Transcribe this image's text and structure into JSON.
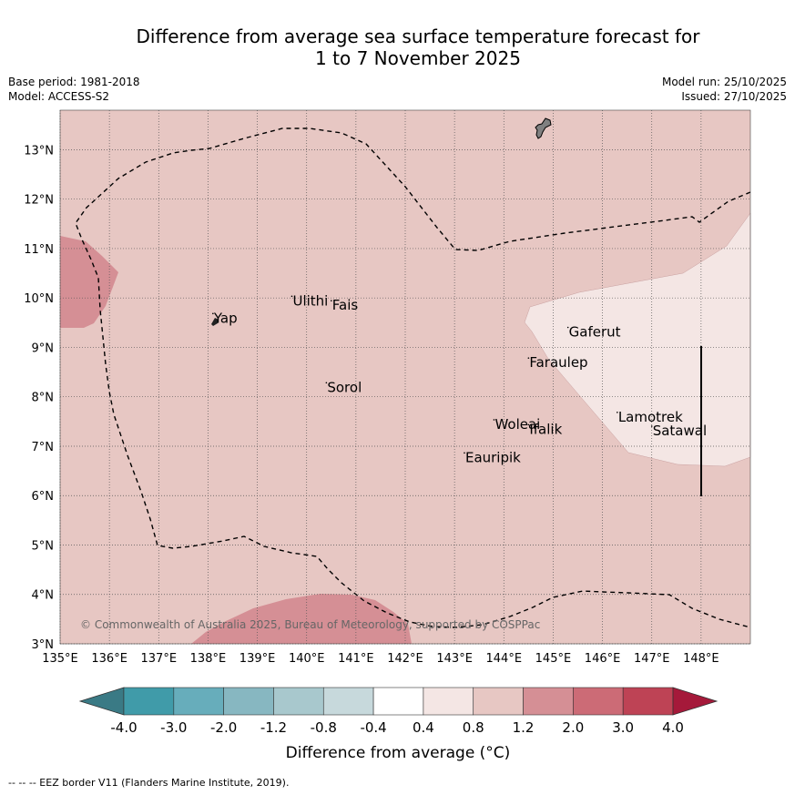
{
  "title": {
    "line1": "Difference from average sea surface temperature forecast for",
    "line2": "1 to 7 November 2025"
  },
  "meta": {
    "base_period": "Base period: 1981-2018",
    "model": "Model: ACCESS-S2",
    "model_run": "Model run: 25/10/2025",
    "issued": "Issued: 27/10/2025"
  },
  "map": {
    "lon_range": [
      135,
      149
    ],
    "lat_range": [
      3,
      13.8
    ],
    "lon_ticks": [
      "135°E",
      "136°E",
      "137°E",
      "138°E",
      "139°E",
      "140°E",
      "141°E",
      "142°E",
      "143°E",
      "144°E",
      "145°E",
      "146°E",
      "147°E",
      "148°E"
    ],
    "lat_ticks": [
      "3°N",
      "4°N",
      "5°N",
      "6°N",
      "7°N",
      "8°N",
      "9°N",
      "10°N",
      "11°N",
      "12°N",
      "13°N"
    ],
    "background_category": "0.8 to 1.2",
    "colors": {
      "bg": "#e7c7c3",
      "light": "#f4e6e4",
      "medium": "#d58f95",
      "land": "#808080"
    },
    "places": [
      {
        "name": "Ulithi",
        "lon": 139.7,
        "lat": 9.85
      },
      {
        "name": "Fais",
        "lon": 140.5,
        "lat": 9.76
      },
      {
        "name": "Yap",
        "lon": 138.1,
        "lat": 9.5
      },
      {
        "name": "Gaferut",
        "lon": 145.3,
        "lat": 9.22
      },
      {
        "name": "Faraulep",
        "lon": 144.5,
        "lat": 8.6
      },
      {
        "name": "Sorol",
        "lon": 140.4,
        "lat": 8.1
      },
      {
        "name": "Woleai",
        "lon": 143.8,
        "lat": 7.35
      },
      {
        "name": "Ifalik",
        "lon": 144.5,
        "lat": 7.25
      },
      {
        "name": "Lamotrek",
        "lon": 146.3,
        "lat": 7.5
      },
      {
        "name": "Satawal",
        "lon": 147.0,
        "lat": 7.22
      },
      {
        "name": "Eauripik",
        "lon": 143.2,
        "lat": 6.68
      }
    ],
    "copyright": "© Commonwealth of Australia 2025, Bureau of Meteorology, supported by COSPPac"
  },
  "colorbar": {
    "labels": [
      "-4.0",
      "-3.0",
      "-2.0",
      "-1.2",
      "-0.8",
      "-0.4",
      "0.4",
      "0.8",
      "1.2",
      "2.0",
      "3.0",
      "4.0"
    ],
    "colors": [
      "#409ba9",
      "#67adbb",
      "#87b7c1",
      "#a8c8cd",
      "#c7d9dc",
      "#ffffff",
      "#f4e6e4",
      "#e7c7c3",
      "#d58f95",
      "#cc6b76",
      "#be4355"
    ],
    "under_color": "#3a7a85",
    "over_color": "#a5193a",
    "label": "Difference from average (°C)"
  },
  "footer": "-- -- -- EEZ border V11 (Flanders Marine Institute, 2019)."
}
